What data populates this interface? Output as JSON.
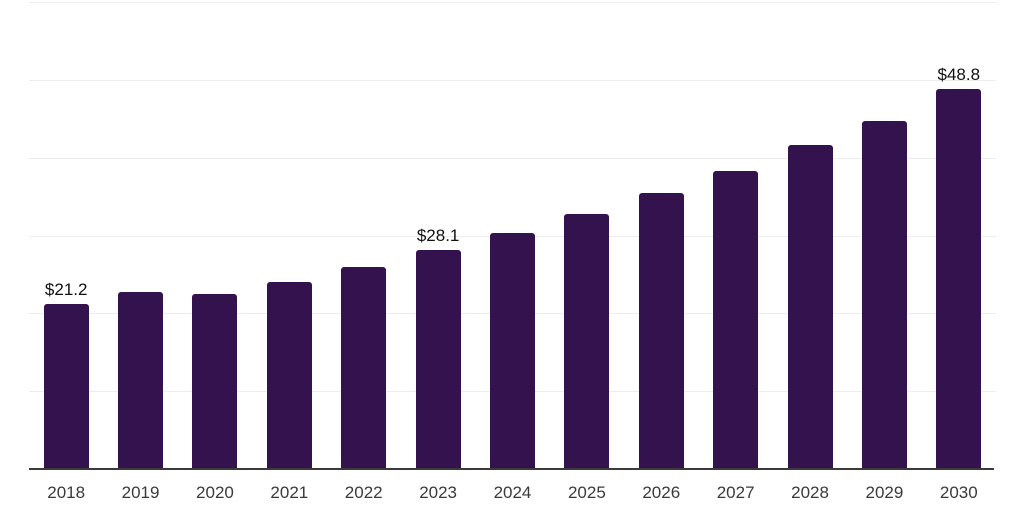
{
  "chart_data": {
    "type": "bar",
    "title": "",
    "xlabel": "",
    "ylabel": "",
    "categories": [
      "2018",
      "2019",
      "2020",
      "2021",
      "2022",
      "2023",
      "2024",
      "2025",
      "2026",
      "2027",
      "2028",
      "2029",
      "2030"
    ],
    "values": [
      21.2,
      22.8,
      22.5,
      24.0,
      26.0,
      28.1,
      30.3,
      32.7,
      35.4,
      38.3,
      41.6,
      44.7,
      48.8
    ],
    "data_labels": {
      "2018": "$21.2",
      "2023": "$28.1",
      "2030": "$48.8"
    },
    "ylim": [
      0,
      60
    ],
    "grid_step": 10,
    "grid": true,
    "legend": false,
    "y_axis_labels_visible": false,
    "colors": {
      "bar": "#34124e",
      "grid": "#ededed",
      "axis": "#3b3b3b",
      "tick_label": "#3a3a3a",
      "data_label": "#111111",
      "background": "#ffffff"
    }
  }
}
